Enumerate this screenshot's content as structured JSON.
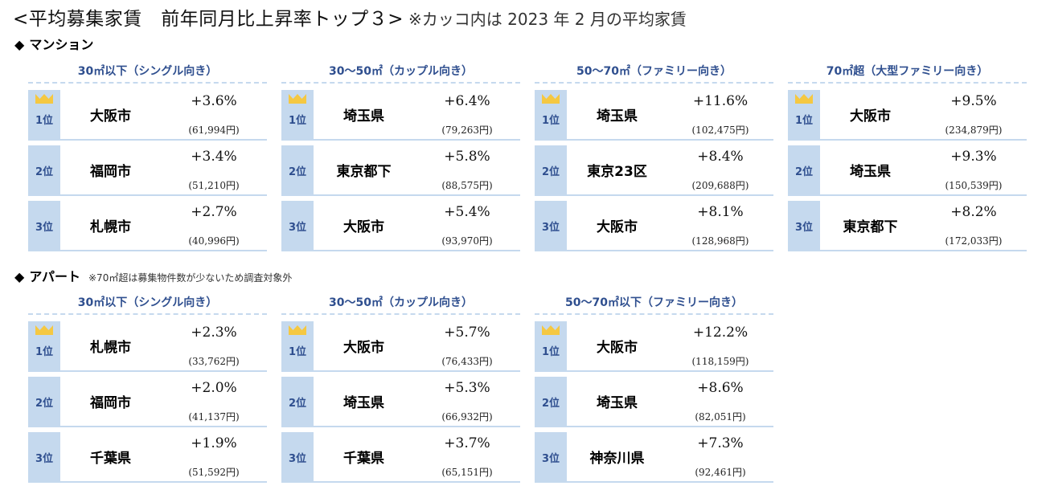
{
  "header": {
    "title": "<平均募集家賃　前年同月比上昇率トップ３>",
    "note": "※カッコ内は 2023 年 2 月の平均家賃"
  },
  "colors": {
    "rank_bg": "#c5d9ee",
    "heading_blue": "#2f4f8f",
    "crown_gold": "#f5c842"
  },
  "sections": [
    {
      "label": "マンション",
      "note": "",
      "columns": [
        {
          "title": "30㎡以下（シングル向き）",
          "rows": [
            {
              "rank": "1位",
              "area": "大阪市",
              "pct": "+3.6%",
              "rent": "(61,994円)"
            },
            {
              "rank": "2位",
              "area": "福岡市",
              "pct": "+3.4%",
              "rent": "(51,210円)"
            },
            {
              "rank": "3位",
              "area": "札幌市",
              "pct": "+2.7%",
              "rent": "(40,996円)"
            }
          ]
        },
        {
          "title": "30～50㎡（カップル向き）",
          "rows": [
            {
              "rank": "1位",
              "area": "埼玉県",
              "pct": "+6.4%",
              "rent": "(79,263円)"
            },
            {
              "rank": "2位",
              "area": "東京都下",
              "pct": "+5.8%",
              "rent": "(88,575円)"
            },
            {
              "rank": "3位",
              "area": "大阪市",
              "pct": "+5.4%",
              "rent": "(93,970円)"
            }
          ]
        },
        {
          "title": "50～70㎡（ファミリー向き）",
          "rows": [
            {
              "rank": "1位",
              "area": "埼玉県",
              "pct": "+11.6%",
              "rent": "(102,475円)"
            },
            {
              "rank": "2位",
              "area": "東京23区",
              "pct": "+8.4%",
              "rent": "(209,688円)"
            },
            {
              "rank": "3位",
              "area": "大阪市",
              "pct": "+8.1%",
              "rent": "(128,968円)"
            }
          ]
        },
        {
          "title": "70㎡超（大型ファミリー向き）",
          "rows": [
            {
              "rank": "1位",
              "area": "大阪市",
              "pct": "+9.5%",
              "rent": "(234,879円)"
            },
            {
              "rank": "2位",
              "area": "埼玉県",
              "pct": "+9.3%",
              "rent": "(150,539円)"
            },
            {
              "rank": "3位",
              "area": "東京都下",
              "pct": "+8.2%",
              "rent": "(172,033円)"
            }
          ]
        }
      ]
    },
    {
      "label": "アパート",
      "note": "※70㎡超は募集物件数が少ないため調査対象外",
      "columns": [
        {
          "title": "30㎡以下（シングル向き）",
          "rows": [
            {
              "rank": "1位",
              "area": "札幌市",
              "pct": "+2.3%",
              "rent": "(33,762円)"
            },
            {
              "rank": "2位",
              "area": "福岡市",
              "pct": "+2.0%",
              "rent": "(41,137円)"
            },
            {
              "rank": "3位",
              "area": "千葉県",
              "pct": "+1.9%",
              "rent": "(51,592円)"
            }
          ]
        },
        {
          "title": "30～50㎡（カップル向き）",
          "rows": [
            {
              "rank": "1位",
              "area": "大阪市",
              "pct": "+5.7%",
              "rent": "(76,433円)"
            },
            {
              "rank": "2位",
              "area": "埼玉県",
              "pct": "+5.3%",
              "rent": "(66,932円)"
            },
            {
              "rank": "3位",
              "area": "千葉県",
              "pct": "+3.7%",
              "rent": "(65,151円)"
            }
          ]
        },
        {
          "title": "50～70㎡以下（ファミリー向き）",
          "rows": [
            {
              "rank": "1位",
              "area": "大阪市",
              "pct": "+12.2%",
              "rent": "(118,159円)"
            },
            {
              "rank": "2位",
              "area": "埼玉県",
              "pct": "+8.6%",
              "rent": "(82,051円)"
            },
            {
              "rank": "3位",
              "area": "神奈川県",
              "pct": "+7.3%",
              "rent": "(92,461円)"
            }
          ]
        }
      ]
    }
  ],
  "chart_data": {
    "type": "table",
    "title": "平均募集家賃　前年同月比上昇率トップ３",
    "note": "カッコ内は 2023 年 2 月の平均家賃",
    "tables": [
      {
        "category": "マンション",
        "size": "30㎡以下（シングル向き）",
        "ranking": [
          {
            "rank": 1,
            "area": "大阪市",
            "yoy_pct": 3.6,
            "avg_rent_yen": 61994
          },
          {
            "rank": 2,
            "area": "福岡市",
            "yoy_pct": 3.4,
            "avg_rent_yen": 51210
          },
          {
            "rank": 3,
            "area": "札幌市",
            "yoy_pct": 2.7,
            "avg_rent_yen": 40996
          }
        ]
      },
      {
        "category": "マンション",
        "size": "30～50㎡（カップル向き）",
        "ranking": [
          {
            "rank": 1,
            "area": "埼玉県",
            "yoy_pct": 6.4,
            "avg_rent_yen": 79263
          },
          {
            "rank": 2,
            "area": "東京都下",
            "yoy_pct": 5.8,
            "avg_rent_yen": 88575
          },
          {
            "rank": 3,
            "area": "大阪市",
            "yoy_pct": 5.4,
            "avg_rent_yen": 93970
          }
        ]
      },
      {
        "category": "マンション",
        "size": "50～70㎡（ファミリー向き）",
        "ranking": [
          {
            "rank": 1,
            "area": "埼玉県",
            "yoy_pct": 11.6,
            "avg_rent_yen": 102475
          },
          {
            "rank": 2,
            "area": "東京23区",
            "yoy_pct": 8.4,
            "avg_rent_yen": 209688
          },
          {
            "rank": 3,
            "area": "大阪市",
            "yoy_pct": 8.1,
            "avg_rent_yen": 128968
          }
        ]
      },
      {
        "category": "マンション",
        "size": "70㎡超（大型ファミリー向き）",
        "ranking": [
          {
            "rank": 1,
            "area": "大阪市",
            "yoy_pct": 9.5,
            "avg_rent_yen": 234879
          },
          {
            "rank": 2,
            "area": "埼玉県",
            "yoy_pct": 9.3,
            "avg_rent_yen": 150539
          },
          {
            "rank": 3,
            "area": "東京都下",
            "yoy_pct": 8.2,
            "avg_rent_yen": 172033
          }
        ]
      },
      {
        "category": "アパート",
        "size": "30㎡以下（シングル向き）",
        "ranking": [
          {
            "rank": 1,
            "area": "札幌市",
            "yoy_pct": 2.3,
            "avg_rent_yen": 33762
          },
          {
            "rank": 2,
            "area": "福岡市",
            "yoy_pct": 2.0,
            "avg_rent_yen": 41137
          },
          {
            "rank": 3,
            "area": "千葉県",
            "yoy_pct": 1.9,
            "avg_rent_yen": 51592
          }
        ]
      },
      {
        "category": "アパート",
        "size": "30～50㎡（カップル向き）",
        "ranking": [
          {
            "rank": 1,
            "area": "大阪市",
            "yoy_pct": 5.7,
            "avg_rent_yen": 76433
          },
          {
            "rank": 2,
            "area": "埼玉県",
            "yoy_pct": 5.3,
            "avg_rent_yen": 66932
          },
          {
            "rank": 3,
            "area": "千葉県",
            "yoy_pct": 3.7,
            "avg_rent_yen": 65151
          }
        ]
      },
      {
        "category": "アパート",
        "size": "50～70㎡以下（ファミリー向き）",
        "ranking": [
          {
            "rank": 1,
            "area": "大阪市",
            "yoy_pct": 12.2,
            "avg_rent_yen": 118159
          },
          {
            "rank": 2,
            "area": "埼玉県",
            "yoy_pct": 8.6,
            "avg_rent_yen": 82051
          },
          {
            "rank": 3,
            "area": "神奈川県",
            "yoy_pct": 7.3,
            "avg_rent_yen": 92461
          }
        ]
      }
    ]
  }
}
